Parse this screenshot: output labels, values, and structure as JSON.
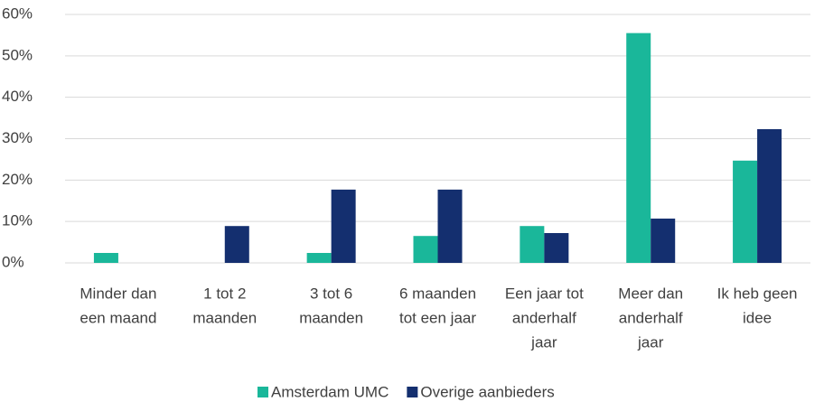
{
  "chart_data": {
    "type": "bar",
    "categories": [
      [
        "Minder dan",
        "een maand"
      ],
      [
        "1 tot 2",
        "maanden"
      ],
      [
        "3 tot 6",
        "maanden"
      ],
      [
        "6 maanden",
        "tot een jaar"
      ],
      [
        "Een jaar tot",
        "anderhalf",
        "jaar"
      ],
      [
        "Meer dan",
        "anderhalf",
        "jaar"
      ],
      [
        "Ik heb geen",
        "idee"
      ]
    ],
    "series": [
      {
        "name": "Amsterdam UMC",
        "color": "#1ab79a",
        "values": [
          2.4,
          0,
          2.4,
          6.5,
          8.9,
          55.5,
          24.7
        ]
      },
      {
        "name": "Overige aanbieders",
        "color": "#142f6f",
        "values": [
          0,
          8.9,
          17.7,
          17.7,
          7.2,
          10.7,
          32.3
        ]
      }
    ],
    "ylim": [
      0,
      60
    ],
    "yticks": [
      {
        "value": 0,
        "label": "0%"
      },
      {
        "value": 10,
        "label": "10%"
      },
      {
        "value": 20,
        "label": "20%"
      },
      {
        "value": 30,
        "label": "30%"
      },
      {
        "value": 40,
        "label": "40%"
      },
      {
        "value": 50,
        "label": "50%"
      },
      {
        "value": 60,
        "label": "60%"
      }
    ],
    "grid": true,
    "legend": "bottom"
  }
}
